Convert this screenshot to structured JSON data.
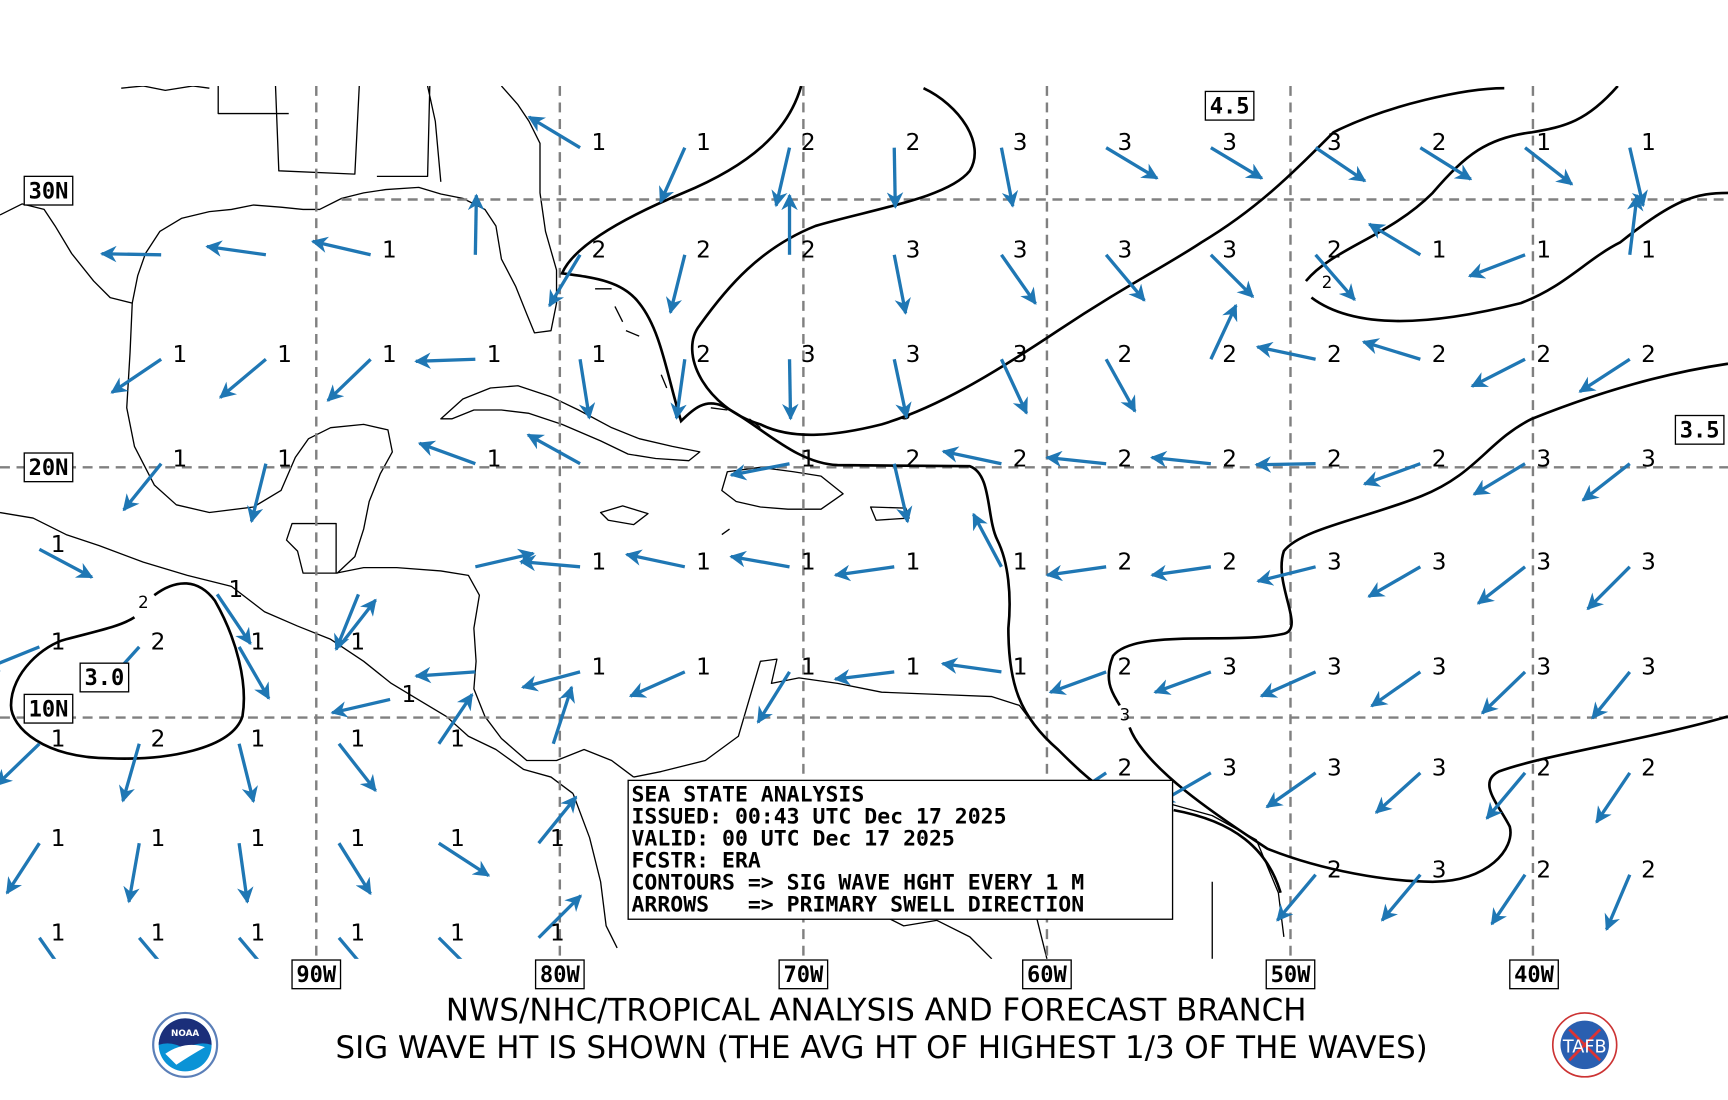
{
  "colors": {
    "arrow": "#1f77b4",
    "grid": "#808080",
    "contour": "#000000"
  },
  "grid_labels": {
    "lat": [
      {
        "lat": 30,
        "label": "30N"
      },
      {
        "lat": 20,
        "label": "20N"
      },
      {
        "lat": 10,
        "label": "10N"
      }
    ],
    "lon": [
      {
        "lon": -90,
        "label": "90W"
      },
      {
        "lon": -80,
        "label": "80W"
      },
      {
        "lon": -70,
        "label": "70W"
      },
      {
        "lon": -60,
        "label": "60W"
      },
      {
        "lon": -50,
        "label": "50W"
      },
      {
        "lon": -40,
        "label": "40W"
      }
    ]
  },
  "contour_maxima": [
    {
      "label": "4.5",
      "lon": -52.5,
      "lat": 33.5
    },
    {
      "label": "3.5",
      "lon": -33.2,
      "lat": 21.4
    },
    {
      "label": "3.0",
      "lon": -98.7,
      "lat": 11.6
    }
  ],
  "contour_labels": [
    {
      "label": "2",
      "lon": -48.5,
      "lat": 26.9
    },
    {
      "label": "3",
      "lon": -65.8,
      "lat": 22.0
    },
    {
      "label": "2",
      "lon": -97.1,
      "lat": 14.6
    },
    {
      "label": "3",
      "lon": -56.8,
      "lat": 10.1
    }
  ],
  "legend": {
    "lines": [
      "SEA STATE ANALYSIS",
      "ISSUED: 00:43 UTC Dec 17 2025",
      "VALID: 00 UTC Dec 17 2025",
      "FCSTR: ERA",
      "CONTOURS => SIG WAVE HGHT EVERY 1 M",
      "ARROWS   => PRIMARY SWELL DIRECTION"
    ]
  },
  "footer": {
    "line1": "NWS/NHC/TROPICAL ANALYSIS AND FORECAST BRANCH",
    "line2": "SIG WAVE HT IS SHOWN (THE AVG HT OF HIGHEST 1/3 OF THE WAVES)",
    "logo_left": "NOAA",
    "logo_right": "TAFB"
  },
  "wave_points": [
    {
      "lat": 32.1,
      "points": [
        {
          "lon": -78.4,
          "hs": "1",
          "dir": 301
        },
        {
          "lon": -74.1,
          "hs": "1",
          "dir": 204
        },
        {
          "lon": -69.8,
          "hs": "2",
          "dir": 193
        },
        {
          "lon": -65.5,
          "hs": "2",
          "dir": 179
        },
        {
          "lon": -61.1,
          "hs": "3",
          "dir": 169
        },
        {
          "lon": -56.8,
          "hs": "3",
          "dir": 121
        },
        {
          "lon": -52.5,
          "hs": "3",
          "dir": 121
        },
        {
          "lon": -48.2,
          "hs": "3",
          "dir": 124
        },
        {
          "lon": -43.9,
          "hs": "2",
          "dir": 122
        },
        {
          "lon": -39.6,
          "hs": "1",
          "dir": 128
        },
        {
          "lon": -35.3,
          "hs": "1",
          "dir": 167
        }
      ]
    },
    {
      "lat": 28.1,
      "points": [
        {
          "lon": -95.6,
          "hs": "",
          "dir": 271
        },
        {
          "lon": -91.3,
          "hs": "",
          "dir": 278
        },
        {
          "lon": -87.0,
          "hs": "1",
          "dir": 283
        },
        {
          "lon": -82.7,
          "hs": "",
          "dir": 1
        },
        {
          "lon": -78.4,
          "hs": "2",
          "dir": 211
        },
        {
          "lon": -74.1,
          "hs": "2",
          "dir": 194
        },
        {
          "lon": -69.8,
          "hs": "2",
          "dir": 0
        },
        {
          "lon": -65.5,
          "hs": "3",
          "dir": 169
        },
        {
          "lon": -61.1,
          "hs": "3",
          "dir": 145
        },
        {
          "lon": -56.8,
          "hs": "3",
          "dir": 140
        },
        {
          "lon": -52.5,
          "hs": "3",
          "dir": 135
        },
        {
          "lon": -48.2,
          "hs": "2",
          "dir": 139
        },
        {
          "lon": -43.9,
          "hs": "1",
          "dir": 301
        },
        {
          "lon": -39.6,
          "hs": "1",
          "dir": 249
        },
        {
          "lon": -35.3,
          "hs": "1",
          "dir": 7
        }
      ]
    },
    {
      "lat": 24.2,
      "points": [
        {
          "lon": -95.6,
          "hs": "1",
          "dir": 236
        },
        {
          "lon": -91.3,
          "hs": "1",
          "dir": 230
        },
        {
          "lon": -87.0,
          "hs": "1",
          "dir": 226
        },
        {
          "lon": -82.7,
          "hs": "1",
          "dir": 268
        },
        {
          "lon": -78.4,
          "hs": "1",
          "dir": 171
        },
        {
          "lon": -74.1,
          "hs": "2",
          "dir": 188
        },
        {
          "lon": -69.8,
          "hs": "3",
          "dir": 179
        },
        {
          "lon": -65.5,
          "hs": "3",
          "dir": 168
        },
        {
          "lon": -61.1,
          "hs": "3",
          "dir": 155
        },
        {
          "lon": -56.8,
          "hs": "2",
          "dir": 151
        },
        {
          "lon": -52.5,
          "hs": "2",
          "dir": 25
        },
        {
          "lon": -48.2,
          "hs": "2",
          "dir": 282
        },
        {
          "lon": -43.9,
          "hs": "2",
          "dir": 287
        },
        {
          "lon": -39.6,
          "hs": "2",
          "dir": 243
        },
        {
          "lon": -35.3,
          "hs": "2",
          "dir": 237
        }
      ]
    },
    {
      "lat": 20.3,
      "points": [
        {
          "lon": -95.6,
          "hs": "1",
          "dir": 219
        },
        {
          "lon": -91.3,
          "hs": "1",
          "dir": 194
        },
        {
          "lon": -82.7,
          "hs": "1",
          "dir": 290
        },
        {
          "lon": -78.4,
          "hs": "",
          "dir": 299
        },
        {
          "lon": -69.8,
          "hs": "1",
          "dir": 259
        },
        {
          "lon": -65.5,
          "hs": "2",
          "dir": 167
        },
        {
          "lon": -61.1,
          "hs": "2",
          "dir": 282
        },
        {
          "lon": -56.8,
          "hs": "2",
          "dir": 276
        },
        {
          "lon": -52.5,
          "hs": "2",
          "dir": 276
        },
        {
          "lon": -48.2,
          "hs": "2",
          "dir": 269
        },
        {
          "lon": -43.9,
          "hs": "2",
          "dir": 250
        },
        {
          "lon": -39.6,
          "hs": "3",
          "dir": 239
        },
        {
          "lon": -35.3,
          "hs": "3",
          "dir": 232
        }
      ]
    },
    {
      "lat": 16.9,
      "points": [
        {
          "lon": -100.6,
          "hs": "1",
          "dir": 118
        }
      ]
    },
    {
      "lat": 16.2,
      "points": [
        {
          "lon": -82.7,
          "hs": "",
          "dir": 77
        },
        {
          "lon": -78.4,
          "hs": "1",
          "dir": 275
        },
        {
          "lon": -74.1,
          "hs": "1",
          "dir": 282
        },
        {
          "lon": -69.8,
          "hs": "1",
          "dir": 280
        },
        {
          "lon": -65.5,
          "hs": "1",
          "dir": 262
        },
        {
          "lon": -61.1,
          "hs": "1",
          "dir": 332
        },
        {
          "lon": -56.8,
          "hs": "2",
          "dir": 262
        },
        {
          "lon": -52.5,
          "hs": "2",
          "dir": 262
        },
        {
          "lon": -48.2,
          "hs": "3",
          "dir": 256
        },
        {
          "lon": -43.9,
          "hs": "3",
          "dir": 240
        },
        {
          "lon": -39.6,
          "hs": "3",
          "dir": 232
        },
        {
          "lon": -35.3,
          "hs": "3",
          "dir": 225
        }
      ]
    },
    {
      "lat": 15.1,
      "points": [
        {
          "lon": -93.3,
          "hs": "1",
          "dir": 146
        },
        {
          "lon": -87.5,
          "hs": "",
          "dir": 202
        }
      ]
    },
    {
      "lat": 13.0,
      "points": [
        {
          "lon": -100.6,
          "hs": "1",
          "dir": 248
        },
        {
          "lon": -96.5,
          "hs": "2",
          "dir": 222
        },
        {
          "lon": -92.4,
          "hs": "1",
          "dir": 150
        },
        {
          "lon": -88.3,
          "hs": "1",
          "dir": 38
        }
      ]
    },
    {
      "lat": 12.0,
      "points": [
        {
          "lon": -82.7,
          "hs": "",
          "dir": 266
        },
        {
          "lon": -78.4,
          "hs": "1",
          "dir": 255
        },
        {
          "lon": -74.1,
          "hs": "1",
          "dir": 246
        },
        {
          "lon": -69.8,
          "hs": "1",
          "dir": 212
        },
        {
          "lon": -65.5,
          "hs": "1",
          "dir": 263
        },
        {
          "lon": -61.1,
          "hs": "1",
          "dir": 278
        },
        {
          "lon": -56.8,
          "hs": "2",
          "dir": 250
        },
        {
          "lon": -52.5,
          "hs": "3",
          "dir": 250
        },
        {
          "lon": -48.2,
          "hs": "3",
          "dir": 246
        },
        {
          "lon": -43.9,
          "hs": "3",
          "dir": 235
        },
        {
          "lon": -39.6,
          "hs": "3",
          "dir": 226
        },
        {
          "lon": -35.3,
          "hs": "3",
          "dir": 219
        }
      ]
    },
    {
      "lat": 10.9,
      "points": [
        {
          "lon": -86.2,
          "hs": "1",
          "dir": 257
        }
      ]
    },
    {
      "lat": 9.1,
      "points": [
        {
          "lon": -100.6,
          "hs": "1",
          "dir": 226
        },
        {
          "lon": -96.5,
          "hs": "2",
          "dir": 196
        },
        {
          "lon": -92.4,
          "hs": "1",
          "dir": 166
        },
        {
          "lon": -88.3,
          "hs": "1",
          "dir": 142
        },
        {
          "lon": -84.2,
          "hs": "1",
          "dir": 34
        },
        {
          "lon": -79.5,
          "hs": "",
          "dir": 18
        }
      ]
    },
    {
      "lat": 7.9,
      "points": [
        {
          "lon": -56.8,
          "hs": "2",
          "dir": 236
        },
        {
          "lon": -52.5,
          "hs": "3",
          "dir": 240
        },
        {
          "lon": -48.2,
          "hs": "3",
          "dir": 235
        },
        {
          "lon": -43.9,
          "hs": "3",
          "dir": 228
        },
        {
          "lon": -39.6,
          "hs": "2",
          "dir": 220
        },
        {
          "lon": -35.3,
          "hs": "2",
          "dir": 214
        }
      ]
    },
    {
      "lat": 5.0,
      "points": [
        {
          "lon": -100.6,
          "hs": "1",
          "dir": 213
        },
        {
          "lon": -96.5,
          "hs": "1",
          "dir": 190
        },
        {
          "lon": -92.4,
          "hs": "1",
          "dir": 172
        },
        {
          "lon": -88.3,
          "hs": "1",
          "dir": 148
        },
        {
          "lon": -84.2,
          "hs": "1",
          "dir": 123
        },
        {
          "lon": -80.1,
          "hs": "1",
          "dir": 39
        }
      ]
    },
    {
      "lat": 3.7,
      "points": [
        {
          "lon": -48.2,
          "hs": "2",
          "dir": 220
        },
        {
          "lon": -43.9,
          "hs": "3",
          "dir": 220
        },
        {
          "lon": -39.6,
          "hs": "2",
          "dir": 214
        },
        {
          "lon": -35.3,
          "hs": "2",
          "dir": 203
        }
      ]
    },
    {
      "lat": 1.1,
      "points": [
        {
          "lon": -100.6,
          "hs": "1",
          "dir": 145
        },
        {
          "lon": -96.5,
          "hs": "1",
          "dir": 140
        },
        {
          "lon": -92.4,
          "hs": "1",
          "dir": 140
        },
        {
          "lon": -88.3,
          "hs": "1",
          "dir": 140
        },
        {
          "lon": -84.2,
          "hs": "1",
          "dir": 135
        },
        {
          "lon": -80.1,
          "hs": "1",
          "dir": 45
        }
      ]
    }
  ]
}
